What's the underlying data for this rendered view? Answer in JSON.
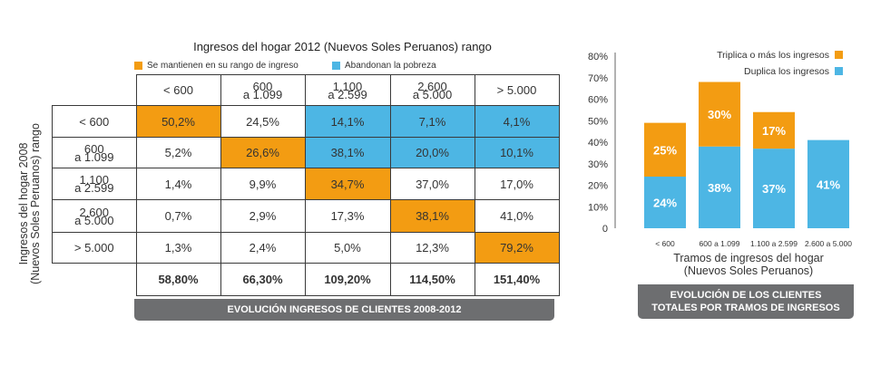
{
  "matrix": {
    "title": "Ingresos del hogar 2012  (Nuevos Soles Peruanos) rango",
    "ylabel_line1": "Ingresos del hogar 2008",
    "ylabel_line2": "(Nuevos Soles Peruanos) rango",
    "legend": [
      {
        "label": "Se mantienen en su rango de ingreso",
        "color": "#f39c12"
      },
      {
        "label": "Abandonan la pobreza",
        "color": "#4db6e4"
      }
    ],
    "col_headers": [
      {
        "l1": "< 600",
        "l2": ""
      },
      {
        "l1": "600",
        "l2": "a 1.099"
      },
      {
        "l1": "1.100",
        "l2": "a 2.599"
      },
      {
        "l1": "2.600",
        "l2": "a 5.000"
      },
      {
        "l1": "> 5.000",
        "l2": ""
      }
    ],
    "row_headers": [
      {
        "l1": "< 600",
        "l2": ""
      },
      {
        "l1": "600",
        "l2": "a 1.099"
      },
      {
        "l1": "1.100",
        "l2": "a 2.599"
      },
      {
        "l1": "2.600",
        "l2": "a 5.000"
      },
      {
        "l1": "> 5.000",
        "l2": ""
      }
    ],
    "cells": [
      [
        "50,2%",
        "24,5%",
        "14,1%",
        "7,1%",
        "4,1%"
      ],
      [
        "5,2%",
        "26,6%",
        "38,1%",
        "20,0%",
        "10,1%"
      ],
      [
        "1,4%",
        "9,9%",
        "34,7%",
        "37,0%",
        "17,0%"
      ],
      [
        "0,7%",
        "2,9%",
        "17,3%",
        "38,1%",
        "41,0%"
      ],
      [
        "1,3%",
        "2,4%",
        "5,0%",
        "12,3%",
        "79,2%"
      ]
    ],
    "cell_colors": [
      [
        "orange",
        "white",
        "blue",
        "blue",
        "blue"
      ],
      [
        "white",
        "orange",
        "blue",
        "blue",
        "blue"
      ],
      [
        "white",
        "white",
        "orange",
        "white",
        "white"
      ],
      [
        "white",
        "white",
        "white",
        "orange",
        "white"
      ],
      [
        "white",
        "white",
        "white",
        "white",
        "orange"
      ]
    ],
    "totals": [
      "58,80%",
      "66,30%",
      "109,20%",
      "114,50%",
      "151,40%"
    ],
    "colors": {
      "orange": "#f39c12",
      "blue": "#4db6e4",
      "white": "#ffffff"
    },
    "banner": "EVOLUCIÓN INGRESOS DE CLIENTES 2008-2012"
  },
  "chart_data": {
    "type": "bar",
    "stacked": true,
    "categories": [
      "< 600",
      "600 a 1.099",
      "1.100 a 2.599",
      "2.600 a 5.000"
    ],
    "series": [
      {
        "name": "Duplica los ingresos",
        "values": [
          24,
          38,
          37,
          41
        ],
        "labels": [
          "24%",
          "38%",
          "37%",
          "41%"
        ],
        "color": "#4db6e4"
      },
      {
        "name": "Triplica o más los ingresos",
        "values": [
          25,
          30,
          17,
          0
        ],
        "labels": [
          "25%",
          "30%",
          "17%",
          ""
        ],
        "color": "#f39c12"
      }
    ],
    "ylim": [
      0,
      80
    ],
    "yticks": [
      0,
      10,
      20,
      30,
      40,
      50,
      60,
      70,
      80
    ],
    "ytick_labels": [
      "0",
      "10%",
      "20%",
      "30%",
      "40%",
      "50%",
      "60%",
      "70%",
      "80%"
    ],
    "xlabel_line1": "Tramos de ingresos del hogar",
    "xlabel_line2": "(Nuevos Soles Peruanos)",
    "legend_position": "top-right",
    "grid": false,
    "banner_line1": "EVOLUCIÓN DE LOS CLIENTES",
    "banner_line2": "TOTALES POR TRAMOS DE INGRESOS"
  }
}
